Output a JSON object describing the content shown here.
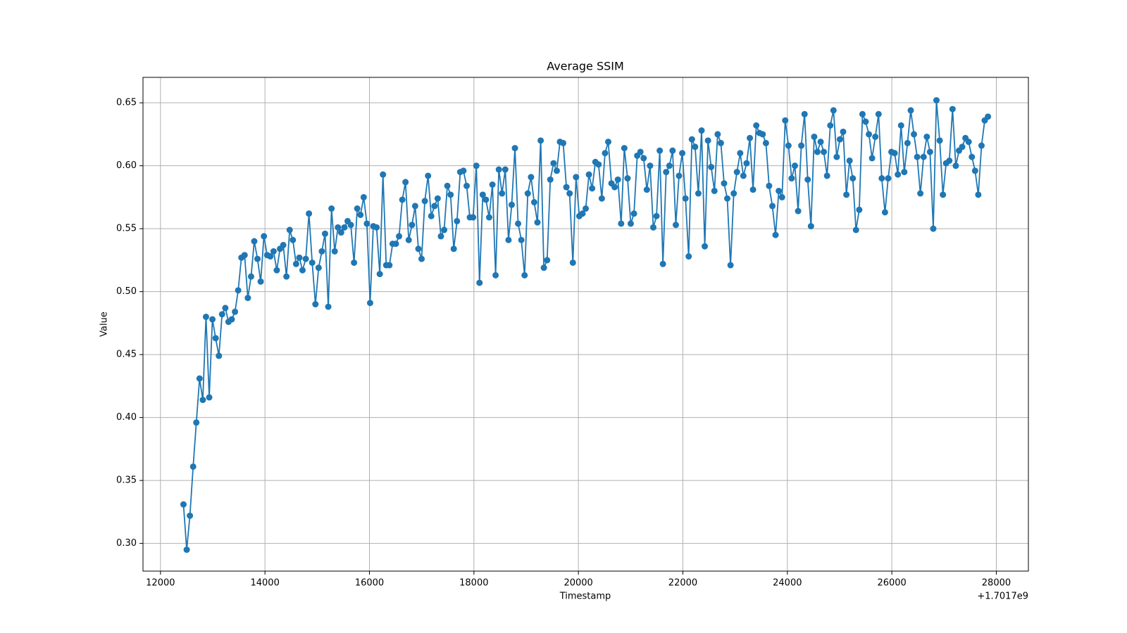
{
  "chart_data": {
    "type": "line",
    "title": "Average SSIM",
    "x_label": "Timestamp",
    "y_label": "Value",
    "x_offset_label": "+1.7017e9",
    "color": "#1f77b4",
    "markers": true,
    "grid": true,
    "xlim": [
      11665,
      28614
    ],
    "ylim": [
      0.278,
      0.6702
    ],
    "xticks": [
      12000,
      14000,
      16000,
      18000,
      20000,
      22000,
      24000,
      26000,
      28000
    ],
    "yticks": [
      {
        "value": 0.3,
        "label": "0.30"
      },
      0.35,
      {
        "value": 0.4,
        "label": "0.40"
      },
      0.45,
      {
        "value": 0.5,
        "label": "0.50"
      },
      0.55,
      {
        "value": 0.6,
        "label": "0.60"
      },
      0.65
    ],
    "x": [
      12440,
      12502,
      12563,
      12625,
      12686,
      12748,
      12810,
      12871,
      12933,
      12994,
      13056,
      13118,
      13179,
      13241,
      13302,
      13364,
      13426,
      13487,
      13549,
      13610,
      13672,
      13734,
      13795,
      13857,
      13918,
      13980,
      14042,
      14103,
      14165,
      14226,
      14288,
      14350,
      14411,
      14473,
      14534,
      14596,
      14658,
      14719,
      14781,
      14842,
      14904,
      14966,
      15027,
      15089,
      15150,
      15212,
      15274,
      15335,
      15397,
      15458,
      15520,
      15582,
      15643,
      15705,
      15766,
      15828,
      15890,
      15951,
      16013,
      16074,
      16136,
      16198,
      16259,
      16321,
      16382,
      16444,
      16506,
      16567,
      16629,
      16690,
      16752,
      16814,
      16875,
      16937,
      16998,
      17060,
      17122,
      17183,
      17245,
      17306,
      17368,
      17430,
      17491,
      17553,
      17614,
      17676,
      17738,
      17799,
      17861,
      17922,
      17984,
      18046,
      18107,
      18169,
      18230,
      18292,
      18354,
      18415,
      18477,
      18538,
      18600,
      18662,
      18723,
      18785,
      18846,
      18908,
      18970,
      19031,
      19093,
      19154,
      19216,
      19278,
      19339,
      19401,
      19462,
      19524,
      19586,
      19647,
      19709,
      19770,
      19832,
      19894,
      19955,
      20017,
      20078,
      20140,
      20202,
      20263,
      20325,
      20386,
      20448,
      20510,
      20571,
      20633,
      20694,
      20756,
      20818,
      20879,
      20941,
      21002,
      21064,
      21126,
      21187,
      21249,
      21310,
      21372,
      21434,
      21495,
      21557,
      21618,
      21680,
      21742,
      21803,
      21865,
      21926,
      21988,
      22050,
      22111,
      22173,
      22234,
      22296,
      22358,
      22419,
      22481,
      22542,
      22604,
      22666,
      22727,
      22789,
      22850,
      22912,
      22974,
      23035,
      23097,
      23158,
      23220,
      23282,
      23343,
      23405,
      23466,
      23528,
      23590,
      23651,
      23713,
      23774,
      23836,
      23898,
      23959,
      24021,
      24082,
      24144,
      24206,
      24267,
      24329,
      24390,
      24452,
      24514,
      24575,
      24637,
      24698,
      24760,
      24822,
      24883,
      24945,
      25006,
      25068,
      25130,
      25191,
      25253,
      25314,
      25376,
      25438,
      25499,
      25561,
      25622,
      25684,
      25746,
      25807,
      25869,
      25930,
      25992,
      26054,
      26115,
      26177,
      26238,
      26300,
      26362,
      26423,
      26485,
      26546,
      26608,
      26670,
      26731,
      26793,
      26854,
      26916,
      26978,
      27039,
      27101,
      27162,
      27224,
      27286,
      27347,
      27409,
      27470,
      27532,
      27594,
      27655,
      27717,
      27778,
      27840
    ],
    "values": [
      0.331,
      0.295,
      0.322,
      0.361,
      0.396,
      0.431,
      0.414,
      0.48,
      0.416,
      0.478,
      0.463,
      0.449,
      0.482,
      0.487,
      0.476,
      0.478,
      0.484,
      0.501,
      0.527,
      0.529,
      0.495,
      0.512,
      0.54,
      0.526,
      0.508,
      0.544,
      0.529,
      0.528,
      0.532,
      0.517,
      0.534,
      0.537,
      0.512,
      0.549,
      0.541,
      0.522,
      0.527,
      0.517,
      0.526,
      0.562,
      0.523,
      0.49,
      0.519,
      0.532,
      0.546,
      0.488,
      0.566,
      0.532,
      0.551,
      0.547,
      0.551,
      0.556,
      0.553,
      0.523,
      0.566,
      0.561,
      0.575,
      0.554,
      0.491,
      0.552,
      0.551,
      0.514,
      0.593,
      0.521,
      0.521,
      0.538,
      0.538,
      0.544,
      0.573,
      0.587,
      0.541,
      0.553,
      0.568,
      0.534,
      0.526,
      0.572,
      0.592,
      0.56,
      0.568,
      0.574,
      0.544,
      0.549,
      0.584,
      0.577,
      0.534,
      0.556,
      0.595,
      0.596,
      0.584,
      0.559,
      0.559,
      0.6,
      0.507,
      0.577,
      0.573,
      0.559,
      0.585,
      0.513,
      0.597,
      0.578,
      0.597,
      0.541,
      0.569,
      0.614,
      0.554,
      0.541,
      0.513,
      0.578,
      0.591,
      0.571,
      0.555,
      0.62,
      0.519,
      0.525,
      0.589,
      0.602,
      0.596,
      0.619,
      0.618,
      0.583,
      0.578,
      0.523,
      0.591,
      0.56,
      0.562,
      0.566,
      0.593,
      0.582,
      0.603,
      0.601,
      0.574,
      0.61,
      0.619,
      0.586,
      0.583,
      0.589,
      0.554,
      0.614,
      0.59,
      0.554,
      0.562,
      0.608,
      0.611,
      0.606,
      0.581,
      0.6,
      0.551,
      0.56,
      0.612,
      0.522,
      0.595,
      0.6,
      0.612,
      0.553,
      0.592,
      0.61,
      0.574,
      0.528,
      0.621,
      0.615,
      0.578,
      0.628,
      0.536,
      0.62,
      0.599,
      0.58,
      0.625,
      0.618,
      0.586,
      0.574,
      0.521,
      0.578,
      0.595,
      0.61,
      0.592,
      0.602,
      0.622,
      0.581,
      0.632,
      0.626,
      0.625,
      0.618,
      0.584,
      0.568,
      0.545,
      0.58,
      0.575,
      0.636,
      0.616,
      0.59,
      0.6,
      0.564,
      0.616,
      0.641,
      0.589,
      0.552,
      0.623,
      0.611,
      0.619,
      0.611,
      0.592,
      0.632,
      0.644,
      0.607,
      0.621,
      0.627,
      0.577,
      0.604,
      0.59,
      0.549,
      0.565,
      0.641,
      0.635,
      0.625,
      0.606,
      0.623,
      0.641,
      0.59,
      0.563,
      0.59,
      0.611,
      0.61,
      0.593,
      0.632,
      0.595,
      0.618,
      0.644,
      0.625,
      0.607,
      0.578,
      0.607,
      0.623,
      0.611,
      0.55,
      0.652,
      0.62,
      0.577,
      0.602,
      0.604,
      0.645,
      0.6,
      0.612,
      0.615,
      0.622,
      0.619,
      0.607,
      0.596,
      0.577,
      0.616,
      0.636,
      0.639
    ]
  }
}
